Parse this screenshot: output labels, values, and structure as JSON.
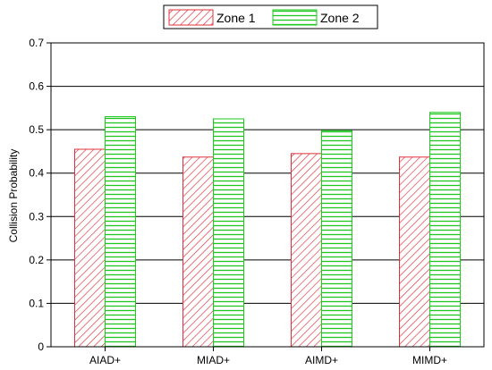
{
  "chart_data": {
    "type": "bar",
    "categories": [
      "AIAD+",
      "MIAD+",
      "AIMD+",
      "MIMD+"
    ],
    "series": [
      {
        "name": "Zone 1",
        "values": [
          0.455,
          0.437,
          0.445,
          0.437
        ],
        "color": "#e0303a",
        "pattern": "diagonal-hatch"
      },
      {
        "name": "Zone 2",
        "values": [
          0.53,
          0.525,
          0.498,
          0.54
        ],
        "color": "#1ec81e",
        "pattern": "horizontal-hatch"
      }
    ],
    "xlabel": "",
    "ylabel": "Collision Probability",
    "ylim": [
      0,
      0.7
    ],
    "yticks": [
      0,
      0.1,
      0.2,
      0.3,
      0.4,
      0.5,
      0.6,
      0.7
    ],
    "ytick_labels": [
      "0",
      "0.1",
      "0.2",
      "0.3",
      "0.4",
      "0.5",
      "0.6",
      "0.7"
    ],
    "grid": true,
    "legend_position": "top-center"
  }
}
